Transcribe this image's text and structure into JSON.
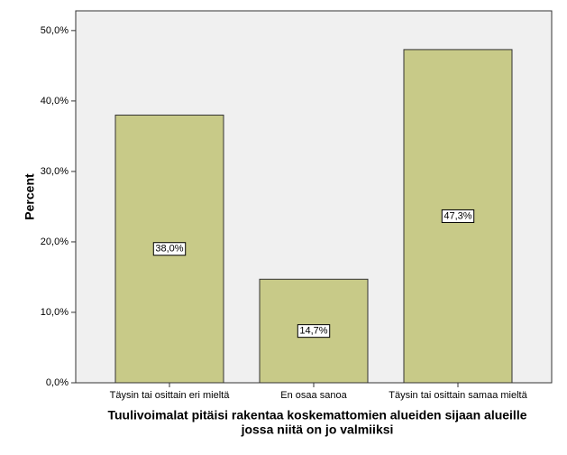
{
  "chart_data": {
    "type": "bar",
    "xlabel": [
      "Tuulivoimalat pitäisi rakentaa koskemattomien alueiden sijaan alueille",
      "jossa niitä on jo valmiiksi"
    ],
    "ylabel": "Percent",
    "categories": [
      "Täysin tai osittain eri mieltä",
      "En osaa sanoa",
      "Täysin tai osittain samaa mieltä"
    ],
    "values": [
      38.0,
      14.7,
      47.3
    ],
    "value_labels": [
      "38,0%",
      "14,7%",
      "47,3%"
    ],
    "color": "#c8ca88",
    "ylim": [
      0,
      52.8
    ],
    "yticks": [
      {
        "value": 0,
        "label": "0,0%"
      },
      {
        "value": 10,
        "label": "10,0%"
      },
      {
        "value": 20,
        "label": "20,0%"
      },
      {
        "value": 30,
        "label": "30,0%"
      },
      {
        "value": 40,
        "label": "40,0%"
      },
      {
        "value": 50,
        "label": "50,0%"
      }
    ]
  }
}
